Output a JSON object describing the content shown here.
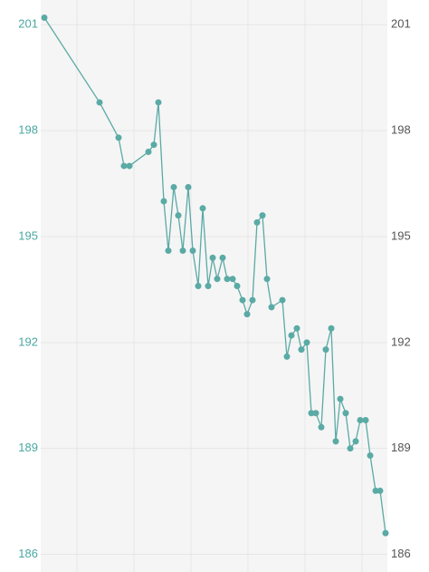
{
  "chart_data": {
    "type": "line",
    "x": [
      4,
      65,
      86,
      92,
      98,
      119,
      125,
      130,
      136,
      141,
      147,
      152,
      157,
      163,
      168,
      174,
      179,
      185,
      190,
      195,
      201,
      206,
      212,
      217,
      223,
      228,
      234,
      239,
      245,
      250,
      255,
      267,
      272,
      277,
      283,
      288,
      294,
      299,
      304,
      310,
      315,
      321,
      326,
      331,
      337,
      342,
      348,
      353,
      359,
      364,
      370,
      375,
      381
    ],
    "series": [
      {
        "color": "#5aaaa5",
        "values": [
          201.2,
          198.8,
          197.8,
          197.0,
          197.0,
          197.4,
          197.6,
          198.8,
          196.0,
          194.6,
          196.4,
          195.6,
          194.6,
          196.4,
          194.6,
          193.6,
          195.8,
          193.6,
          194.4,
          193.8,
          194.4,
          193.8,
          193.8,
          193.6,
          193.2,
          192.8,
          193.2,
          195.4,
          195.6,
          193.8,
          193.0,
          193.2,
          191.6,
          192.2,
          192.4,
          191.8,
          192.0,
          190.0,
          190.0,
          189.6,
          191.8,
          192.4,
          189.2,
          190.4,
          190.0,
          189.0,
          189.2,
          189.8,
          189.8,
          188.8,
          187.8,
          187.8,
          186.6
        ]
      }
    ],
    "xlim": [
      0,
      383
    ],
    "xticks": [
      40,
      103,
      166,
      229,
      292,
      355
    ],
    "ylim": [
      185.5,
      201.7
    ],
    "yticks": [
      186,
      189,
      192,
      195,
      198,
      201
    ],
    "y2lim": [
      185.5,
      201.7
    ],
    "y2ticks": [
      186,
      189,
      192,
      195,
      198,
      201
    ],
    "grid": true
  }
}
